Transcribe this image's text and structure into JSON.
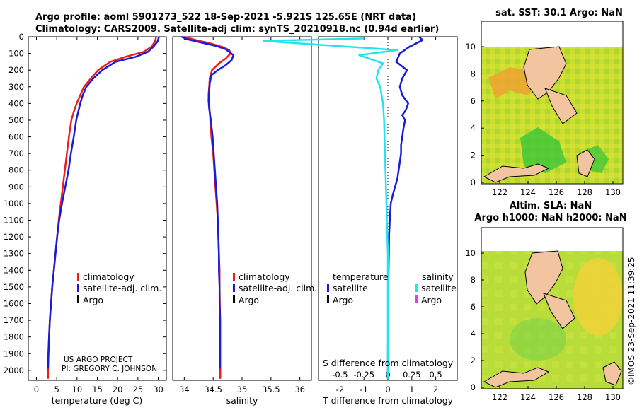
{
  "header": {
    "line1": "Argo profile: aoml 5901273_522 18-Sep-2021 -5.921S 125.65E (NRT data)",
    "line2": "Climatology: CARS2009. Satellite-adj clim: synTS_20210918.nc (0.94d earlier)"
  },
  "credit": {
    "line1": "US ARGO PROJECT",
    "line2": "PI: GREGORY C. JOHNSON"
  },
  "timestamp": "©IMOS 23-Sep-2021 11:39:25",
  "colors": {
    "red": "#ee1c1c",
    "blue": "#1a1adc",
    "cyan": "#22e4f0",
    "magenta": "#e040e0",
    "black": "#000000"
  },
  "chart_data": [
    {
      "type": "line",
      "xlabel": "temperature (deg C)",
      "xlim": [
        -2,
        32
      ],
      "ylim": [
        2060,
        0
      ],
      "xticks": [
        0,
        5,
        10,
        15,
        20,
        25,
        30
      ],
      "yticks": [
        0,
        100,
        200,
        300,
        400,
        500,
        600,
        700,
        800,
        900,
        1000,
        1100,
        1200,
        1300,
        1400,
        1500,
        1600,
        1700,
        1800,
        1900,
        2000
      ],
      "legend": [
        "climatology",
        "satellite-adj. clim.",
        "Argo"
      ],
      "series": [
        {
          "name": "climatology",
          "color": "#ee1c1c",
          "points": [
            [
              29.5,
              0
            ],
            [
              29.2,
              30
            ],
            [
              28.3,
              60
            ],
            [
              26.5,
              90
            ],
            [
              22,
              120
            ],
            [
              18.2,
              150
            ],
            [
              15.2,
              200
            ],
            [
              13.4,
              250
            ],
            [
              11.7,
              300
            ],
            [
              10.8,
              350
            ],
            [
              9.9,
              400
            ],
            [
              9.2,
              450
            ],
            [
              8.6,
              500
            ],
            [
              8,
              600
            ],
            [
              7.5,
              700
            ],
            [
              7,
              800
            ],
            [
              6.5,
              900
            ],
            [
              6,
              1000
            ],
            [
              5.5,
              1100
            ],
            [
              5.1,
              1200
            ],
            [
              4.7,
              1300
            ],
            [
              4.3,
              1400
            ],
            [
              3.9,
              1500
            ],
            [
              3.6,
              1600
            ],
            [
              3.3,
              1700
            ],
            [
              3.1,
              1800
            ],
            [
              2.95,
              1900
            ],
            [
              2.85,
              2000
            ],
            [
              2.8,
              2050
            ]
          ]
        },
        {
          "name": "satellite-adj. clim.",
          "color": "#1a1adc",
          "points": [
            [
              30.2,
              0
            ],
            [
              29.8,
              30
            ],
            [
              28.8,
              60
            ],
            [
              27.5,
              90
            ],
            [
              24.5,
              120
            ],
            [
              19.5,
              150
            ],
            [
              16.2,
              200
            ],
            [
              14,
              250
            ],
            [
              12.3,
              300
            ],
            [
              11.4,
              350
            ],
            [
              10.8,
              400
            ],
            [
              10.3,
              450
            ],
            [
              9.8,
              500
            ],
            [
              9.2,
              600
            ],
            [
              8.5,
              700
            ],
            [
              7.9,
              800
            ],
            [
              7.1,
              900
            ],
            [
              6.3,
              1000
            ],
            [
              5.6,
              1100
            ],
            [
              5.1,
              1200
            ],
            [
              4.7,
              1300
            ],
            [
              4.3,
              1400
            ],
            [
              3.9,
              1500
            ],
            [
              3.6,
              1600
            ],
            [
              3.3,
              1700
            ],
            [
              3.1,
              1800
            ],
            [
              2.95,
              1900
            ],
            [
              2.85,
              2000
            ],
            [
              2.8,
              2050
            ]
          ]
        }
      ]
    },
    {
      "type": "line",
      "xlabel": "salinity",
      "xlim": [
        33.8,
        36.2
      ],
      "ylim": [
        2060,
        0
      ],
      "xticks": [
        34,
        34.5,
        35,
        35.5,
        36
      ],
      "xticklabels": [
        "34",
        "34.5",
        "35",
        "35.5",
        "36"
      ],
      "legend": [
        "climatology",
        "satellite-adj. clim.",
        "Argo"
      ],
      "series": [
        {
          "name": "climatology",
          "color": "#ee1c1c",
          "points": [
            [
              34,
              0
            ],
            [
              34.2,
              20
            ],
            [
              34.45,
              40
            ],
            [
              34.65,
              60
            ],
            [
              34.78,
              80
            ],
            [
              34.8,
              100
            ],
            [
              34.72,
              130
            ],
            [
              34.6,
              160
            ],
            [
              34.48,
              200
            ],
            [
              34.44,
              250
            ],
            [
              34.43,
              300
            ],
            [
              34.42,
              350
            ],
            [
              34.43,
              400
            ],
            [
              34.45,
              500
            ],
            [
              34.47,
              600
            ],
            [
              34.5,
              700
            ],
            [
              34.52,
              800
            ],
            [
              34.54,
              900
            ],
            [
              34.56,
              1000
            ],
            [
              34.58,
              1100
            ],
            [
              34.59,
              1200
            ],
            [
              34.6,
              1300
            ],
            [
              34.61,
              1400
            ],
            [
              34.61,
              1500
            ],
            [
              34.62,
              1700
            ],
            [
              34.62,
              2000
            ],
            [
              34.62,
              2050
            ]
          ]
        },
        {
          "name": "satellite-adj. clim.",
          "color": "#1a1adc",
          "points": [
            [
              33.95,
              0
            ],
            [
              34.05,
              15
            ],
            [
              34.3,
              35
            ],
            [
              34.55,
              55
            ],
            [
              34.72,
              75
            ],
            [
              34.85,
              110
            ],
            [
              34.82,
              140
            ],
            [
              34.72,
              170
            ],
            [
              34.58,
              200
            ],
            [
              34.47,
              230
            ],
            [
              34.44,
              280
            ],
            [
              34.43,
              330
            ],
            [
              34.42,
              380
            ],
            [
              34.43,
              430
            ],
            [
              34.46,
              500
            ],
            [
              34.49,
              600
            ],
            [
              34.51,
              700
            ],
            [
              34.53,
              800
            ],
            [
              34.55,
              900
            ],
            [
              34.57,
              1000
            ],
            [
              34.58,
              1100
            ],
            [
              34.59,
              1200
            ],
            [
              34.6,
              1300
            ],
            [
              34.6,
              1400
            ],
            [
              34.61,
              1500
            ],
            [
              34.61,
              1600
            ],
            [
              34.62,
              1700
            ],
            [
              34.62,
              2000
            ],
            [
              34.62,
              2050
            ]
          ]
        }
      ]
    },
    {
      "type": "line",
      "xlabel": "T difference from climatology",
      "xlabel_top": "S difference from climatology",
      "xlim": [
        -2.9,
        2.9
      ],
      "ylim": [
        2060,
        0
      ],
      "xticks": [
        -2,
        -1,
        0,
        1,
        2
      ],
      "sticks": [
        -0.5,
        -0.25,
        0,
        0.25,
        0.5
      ],
      "sticklabels": [
        "-0.5",
        "-0.25",
        "0",
        "0.25",
        "0.5"
      ],
      "legend_t_title": "temperature",
      "legend_s_title": "salinity",
      "legend_t": [
        "satellite",
        "Argo"
      ],
      "legend_s": [
        "satellite",
        "Argo"
      ],
      "series": [
        {
          "name": "temperature satellite",
          "color": "#1a1adc",
          "points": [
            [
              1.3,
              0
            ],
            [
              1.45,
              20
            ],
            [
              0.9,
              60
            ],
            [
              0.5,
              100
            ],
            [
              0.35,
              150
            ],
            [
              0.8,
              200
            ],
            [
              0.6,
              250
            ],
            [
              0.5,
              300
            ],
            [
              0.6,
              350
            ],
            [
              0.85,
              400
            ],
            [
              0.75,
              440
            ],
            [
              0.6,
              470
            ],
            [
              0.72,
              500
            ],
            [
              0.65,
              550
            ],
            [
              0.6,
              600
            ],
            [
              0.55,
              650
            ],
            [
              0.55,
              700
            ],
            [
              0.5,
              750
            ],
            [
              0.45,
              800
            ],
            [
              0.4,
              850
            ],
            [
              0.3,
              900
            ],
            [
              0.2,
              950
            ],
            [
              0.12,
              1000
            ],
            [
              0.08,
              1100
            ],
            [
              0.05,
              1200
            ],
            [
              0.04,
              1300
            ],
            [
              0.03,
              1400
            ],
            [
              0.02,
              1500
            ],
            [
              0.01,
              1700
            ],
            [
              0.0,
              2050
            ]
          ]
        },
        {
          "name": "salinity satellite",
          "color": "#22e4f0",
          "points": [
            [
              -0.25,
              10
            ],
            [
              -1.3,
              25
            ],
            [
              -0.4,
              60
            ],
            [
              0.1,
              80
            ],
            [
              -0.3,
              110
            ],
            [
              -0.05,
              160
            ],
            [
              -0.1,
              200
            ],
            [
              -0.12,
              250
            ],
            [
              -0.08,
              300
            ],
            [
              -0.05,
              400
            ],
            [
              -0.04,
              500
            ],
            [
              -0.03,
              700
            ],
            [
              -0.02,
              900
            ],
            [
              -0.01,
              1100
            ],
            [
              0.0,
              1300
            ],
            [
              0.0,
              2050
            ]
          ]
        }
      ]
    }
  ],
  "maps": {
    "sst": {
      "title": "sat. SST: 30.1 Argo: NaN",
      "xticks": [
        "122",
        "124",
        "126",
        "128",
        "130"
      ],
      "yticks": [
        "0",
        "2",
        "4",
        "6",
        "8",
        "10"
      ]
    },
    "sla": {
      "title1": "Altim. SLA: NaN",
      "title2": "Argo h1000: NaN h2000: NaN",
      "xticks": [
        "122",
        "124",
        "126",
        "128",
        "130"
      ],
      "yticks": [
        "0",
        "2",
        "4",
        "6",
        "8",
        "10"
      ]
    }
  }
}
